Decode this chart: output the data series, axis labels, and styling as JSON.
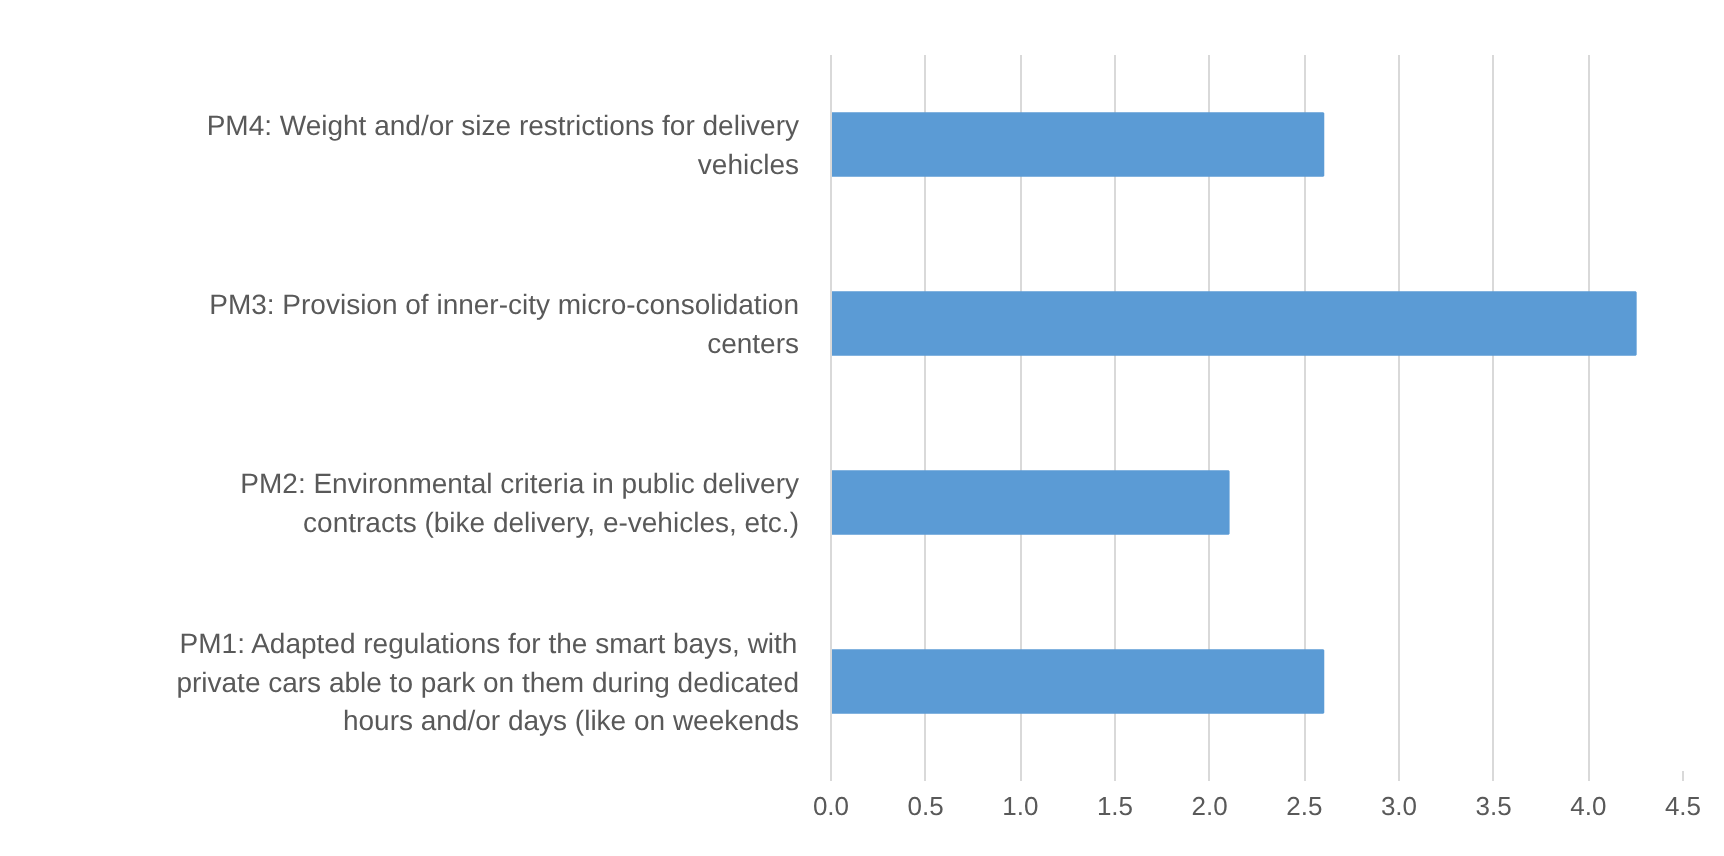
{
  "chart_data": {
    "type": "bar",
    "orientation": "horizontal",
    "categories": [
      "PM4: Weight and/or size restrictions for delivery vehicles",
      "PM3: Provision of inner-city micro-consolidation centers",
      "PM2: Environmental criteria in public delivery contracts (bike delivery, e-vehicles, etc.)",
      "PM1: Adapted regulations for the smart bays, with private cars able to park on them during dedicated hours and/or days (like on weekends"
    ],
    "values": [
      2.6,
      4.25,
      2.1,
      2.6
    ],
    "color": "#5b9bd5",
    "xlim": [
      0,
      4.5
    ],
    "xticks": [
      {
        "value": 0,
        "label": "0.0"
      },
      0.5,
      {
        "value": 1,
        "label": "1.0"
      },
      1.5,
      {
        "value": 2,
        "label": "2.0"
      },
      2.5,
      {
        "value": 3,
        "label": "3.0"
      },
      3.5,
      {
        "value": 4,
        "label": "4.0"
      },
      4.5
    ],
    "grid": "x"
  }
}
